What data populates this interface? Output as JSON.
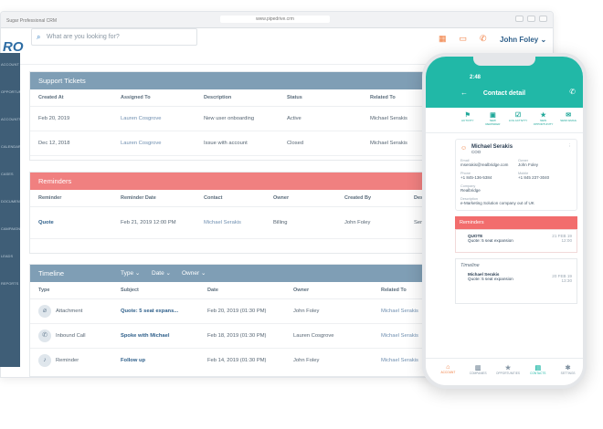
{
  "browser": {
    "tab_title": "Sugar Professional CRM",
    "url": "www.pipedrive.crm"
  },
  "app": {
    "logo_text": "RO",
    "search_placeholder": "What are you looking for?",
    "user_name": "John Foley"
  },
  "sidebar": {
    "items": [
      "ACCOUNT",
      "OPPORTUNITIES",
      "ACCOUNTS",
      "CALENDAR",
      "CASES",
      "DOCUMENTS",
      "CAMPAIGNS",
      "LEADS",
      "REPORTS"
    ]
  },
  "support_tickets": {
    "title": "Support Tickets",
    "columns": [
      "Created At",
      "Assigned To",
      "Description",
      "Status",
      "Related To"
    ],
    "rows": [
      [
        "Feb 20, 2019",
        "Lauren Cosgrove",
        "New user onboarding",
        "Active",
        "Michael Serakis"
      ],
      [
        "Dec 12, 2018",
        "Lauren Cosgrove",
        "Issue with account",
        "Closed",
        "Michael Serakis"
      ]
    ]
  },
  "reminders": {
    "title": "Reminders",
    "columns": [
      "Reminder",
      "Reminder Date",
      "Contact",
      "Owner",
      "Created By",
      "Description"
    ],
    "rows": [
      [
        "Quote",
        "Feb 21, 2019 12:00 PM",
        "Michael Serakis",
        "Billing",
        "John Foley",
        "Send quote"
      ]
    ]
  },
  "timeline": {
    "title": "Timeline",
    "filters": [
      "Type",
      "Date",
      "Owner"
    ],
    "columns": [
      "Type",
      "Subject",
      "Date",
      "Owner",
      "Related To"
    ],
    "rows": [
      {
        "icon": "paperclip-icon",
        "type": "Attachment",
        "subject": "Quote: 5 seat expans...",
        "date": "Feb 20, 2019 (01:30 PM)",
        "owner": "John Foley",
        "related": "Michael Serakis"
      },
      {
        "icon": "phone-icon",
        "type": "Inbound Call",
        "subject": "Spoke with Michael",
        "date": "Feb 18, 2019 (01:30 PM)",
        "owner": "Lauren Cosgrove",
        "related": "Michael Serakis"
      },
      {
        "icon": "bell-icon",
        "type": "Reminder",
        "subject": "Follow up",
        "date": "Feb 14, 2019 (01:30 PM)",
        "owner": "John Foley",
        "related": "Michael Serakis"
      }
    ]
  },
  "phone": {
    "time": "2:48",
    "title": "Contact detail",
    "actions": [
      "ACTIVITY",
      "NEW REMINDER",
      "LOG ACTIVITY",
      "NEW OPPORTUNITY",
      "SEND EMAIL"
    ],
    "contact": {
      "name": "Michael Serakis",
      "role": "COO",
      "email_label": "Email",
      "email": "mserakis@realbridge.com",
      "owner_label": "Owner",
      "owner": "John Foley",
      "phone_label": "Phone",
      "phone": "+1 845-136-5384",
      "mobile_label": "Mobile",
      "mobile": "+1 845 237-3040",
      "company_label": "Company",
      "company": "Realbridge",
      "description_label": "Description",
      "description": "e-Marketing Solution company out of UK"
    },
    "reminders_title": "Reminders",
    "reminder": {
      "title": "QUOTE",
      "sub": "Quote: 5 seat expansion",
      "date": "21 FEB 19",
      "time": "12:00"
    },
    "timeline_title": "Timeline",
    "timeline_item": {
      "name": "Michael Serakis",
      "sub": "Quote: 5 seat expansion",
      "date": "20 FEB 19",
      "time": "13:30"
    },
    "tabs": [
      "ACCOUNT",
      "COMPANIES",
      "OPPORTUNITIES",
      "CONTACTS",
      "SETTINGS"
    ]
  }
}
